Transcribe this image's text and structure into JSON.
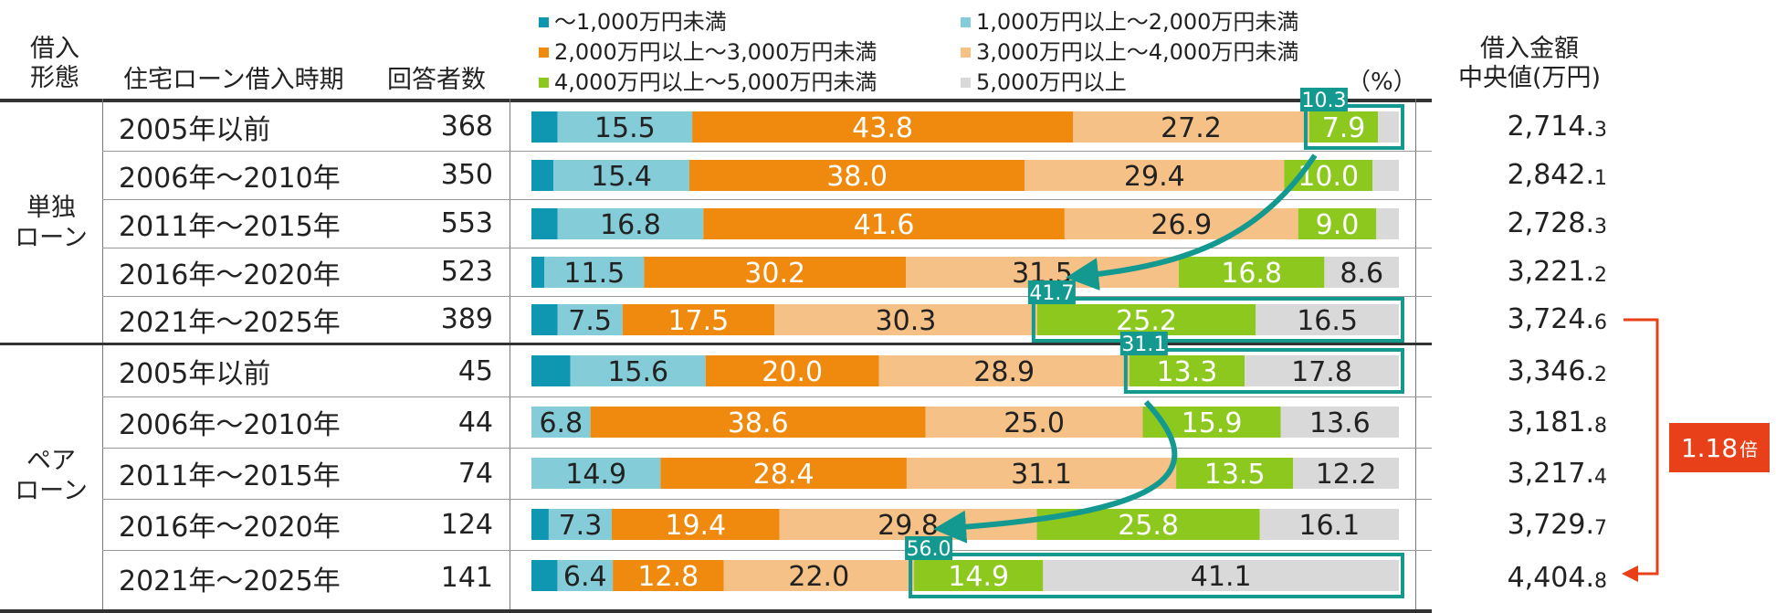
{
  "headers": {
    "type_line1": "借入",
    "type_line2": "形態",
    "period": "住宅ローン借入時期",
    "respondents": "回答者数",
    "unit": "（%）",
    "median_line1": "借入金額",
    "median_line2": "中央値(万円)"
  },
  "legend": [
    {
      "label": "～1,000万円未満",
      "color": "#0f97b1"
    },
    {
      "label": "1,000万円以上～2,000万円未満",
      "color": "#85ccd9"
    },
    {
      "label": "2,000万円以上～3,000万円未満",
      "color": "#ef8a0e"
    },
    {
      "label": "3,000万円以上～4,000万円未満",
      "color": "#f5c186"
    },
    {
      "label": "4,000万円以上～5,000万円未満",
      "color": "#8dc81f"
    },
    {
      "label": "5,000万円以上",
      "color": "#d9d9d9"
    }
  ],
  "groups": [
    {
      "line1": "単独",
      "line2": "ローン"
    },
    {
      "line1": "ペア",
      "line2": "ローン"
    }
  ],
  "rows": [
    {
      "period": "2005年以前",
      "n": "368",
      "median_main": "2,714.",
      "median_dec": "3"
    },
    {
      "period": "2006年～2010年",
      "n": "350",
      "median_main": "2,842.",
      "median_dec": "1"
    },
    {
      "period": "2011年～2015年",
      "n": "553",
      "median_main": "2,728.",
      "median_dec": "3"
    },
    {
      "period": "2016年～2020年",
      "n": "523",
      "median_main": "3,221.",
      "median_dec": "2"
    },
    {
      "period": "2021年～2025年",
      "n": "389",
      "median_main": "3,724.",
      "median_dec": "6"
    },
    {
      "period": "2005年以前",
      "n": "45",
      "median_main": "3,346.",
      "median_dec": "2"
    },
    {
      "period": "2006年～2010年",
      "n": "44",
      "median_main": "3,181.",
      "median_dec": "8"
    },
    {
      "period": "2011年～2015年",
      "n": "74",
      "median_main": "3,217.",
      "median_dec": "4"
    },
    {
      "period": "2016年～2020年",
      "n": "124",
      "median_main": "3,729.",
      "median_dec": "7"
    },
    {
      "period": "2021年～2025年",
      "n": "141",
      "median_main": "4,404.",
      "median_dec": "8"
    }
  ],
  "ratio": {
    "value": "1.18",
    "unit": "倍"
  },
  "chart_data": {
    "type": "bar",
    "orientation": "horizontal",
    "stacked": true,
    "unit": "%",
    "categories": [
      "単独ローン 2005年以前",
      "単独ローン 2006年～2010年",
      "単独ローン 2011年～2015年",
      "単独ローン 2016年～2020年",
      "単独ローン 2021年～2025年",
      "ペアローン 2005年以前",
      "ペアローン 2006年～2010年",
      "ペアローン 2011年～2015年",
      "ペアローン 2016年～2020年",
      "ペアローン 2021年～2025年"
    ],
    "series": [
      {
        "name": "～1,000万円未満",
        "values": [
          3.0,
          2.5,
          3.0,
          1.5,
          3.0,
          4.5,
          0,
          0,
          2.0,
          3.0
        ]
      },
      {
        "name": "1,000万円以上～2,000万円未満",
        "values": [
          15.5,
          15.4,
          16.8,
          11.5,
          7.5,
          15.6,
          6.8,
          14.9,
          7.3,
          6.4
        ]
      },
      {
        "name": "2,000万円以上～3,000万円未満",
        "values": [
          43.8,
          38.0,
          41.6,
          30.2,
          17.5,
          20.0,
          38.6,
          28.4,
          19.4,
          12.8
        ]
      },
      {
        "name": "3,000万円以上～4,000万円未満",
        "values": [
          27.2,
          29.4,
          26.9,
          31.5,
          30.3,
          28.9,
          25.0,
          31.1,
          29.8,
          22.0
        ]
      },
      {
        "name": "4,000万円以上～5,000万円未満",
        "values": [
          7.9,
          10.0,
          9.0,
          16.8,
          25.2,
          13.3,
          15.9,
          13.5,
          25.8,
          14.9
        ]
      },
      {
        "name": "5,000万円以上",
        "values": [
          2.4,
          3.0,
          2.6,
          8.6,
          16.5,
          17.8,
          13.6,
          12.2,
          16.1,
          41.1
        ]
      }
    ],
    "bar_labels": [
      [
        "",
        "15.5",
        "43.8",
        "27.2",
        "7.9",
        ""
      ],
      [
        "",
        "15.4",
        "38.0",
        "29.4",
        "10.0",
        ""
      ],
      [
        "",
        "16.8",
        "41.6",
        "26.9",
        "9.0",
        ""
      ],
      [
        "",
        "11.5",
        "30.2",
        "31.5",
        "16.8",
        "8.6"
      ],
      [
        "",
        "7.5",
        "17.5",
        "30.3",
        "25.2",
        "16.5"
      ],
      [
        "",
        "15.6",
        "20.0",
        "28.9",
        "13.3",
        "17.8"
      ],
      [
        "",
        "6.8",
        "38.6",
        "25.0",
        "15.9",
        "13.6"
      ],
      [
        "",
        "14.9",
        "28.4",
        "31.1",
        "13.5",
        "12.2"
      ],
      [
        "",
        "7.3",
        "19.4",
        "29.8",
        "25.8",
        "16.1"
      ],
      [
        "",
        "6.4",
        "12.8",
        "22.0",
        "14.9",
        "41.1"
      ]
    ],
    "label_colors": [
      "#ffffff",
      "#222222",
      "#ffffff",
      "#222222",
      "#ffffff",
      "#222222"
    ],
    "highlights": [
      {
        "row": 0,
        "from_series": 4,
        "label": "10.3",
        "color": "#13998f"
      },
      {
        "row": 4,
        "from_series": 4,
        "label": "41.7",
        "color": "#13998f"
      },
      {
        "row": 5,
        "from_series": 4,
        "label": "31.1",
        "color": "#13998f"
      },
      {
        "row": 9,
        "from_series": 4,
        "label": "56.0",
        "color": "#13998f"
      }
    ],
    "arrows": [
      {
        "from_row": 0,
        "to_row": 3,
        "color": "#13998f"
      },
      {
        "from_row": 5,
        "to_row": 8,
        "color": "#13998f"
      }
    ],
    "xlim": [
      0,
      100
    ]
  }
}
